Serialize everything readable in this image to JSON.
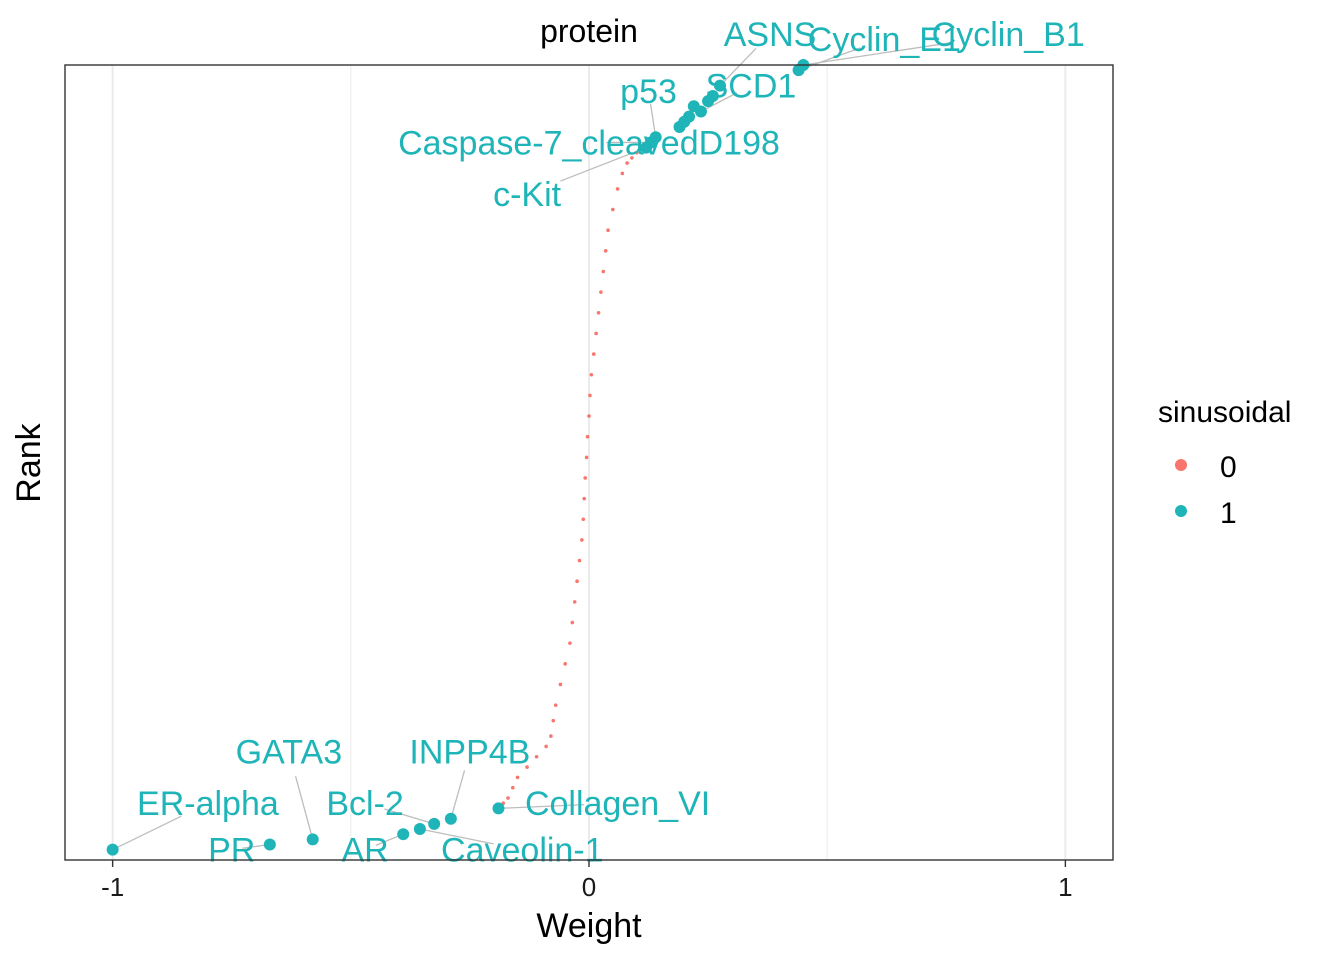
{
  "chart_data": {
    "type": "scatter",
    "title": "protein",
    "xlabel": "Weight",
    "ylabel": "Rank",
    "xlim": [
      -1.1,
      1.1
    ],
    "ylim": [
      -2,
      152
    ],
    "x_ticks": [
      {
        "value": -1,
        "label": "-1"
      },
      {
        "value": 0,
        "label": "0"
      },
      {
        "value": 1,
        "label": "1"
      }
    ],
    "grid": true,
    "legend": {
      "title": "sinusoidal",
      "position": "right",
      "entries": [
        {
          "label": "0",
          "color": "#f8766d"
        },
        {
          "label": "1",
          "color": "#1fb5b8"
        }
      ]
    },
    "colors": {
      "group0": "#f8766d",
      "group1": "#1fb5b8"
    },
    "labeled_points": [
      {
        "name": "ER-alpha",
        "x": -1.0,
        "y": 0,
        "label_x": -0.8,
        "label_y": 9
      },
      {
        "name": "PR",
        "x": -0.67,
        "y": 1,
        "label_x": -0.75,
        "label_y": 0
      },
      {
        "name": "GATA3",
        "x": -0.58,
        "y": 2,
        "label_x": -0.63,
        "label_y": 19
      },
      {
        "name": "AR",
        "x": -0.39,
        "y": 3,
        "label_x": -0.47,
        "label_y": 0
      },
      {
        "name": "Caveolin-1",
        "x": -0.355,
        "y": 4,
        "label_x": -0.14,
        "label_y": 0
      },
      {
        "name": "Bcl-2",
        "x": -0.325,
        "y": 5,
        "label_x": -0.47,
        "label_y": 9
      },
      {
        "name": "INPP4B",
        "x": -0.29,
        "y": 6,
        "label_x": -0.25,
        "label_y": 19
      },
      {
        "name": "Collagen_VI",
        "x": -0.19,
        "y": 8,
        "label_x": 0.06,
        "label_y": 9
      },
      {
        "name": "c-Kit",
        "x": 0.12,
        "y": 136,
        "label_x": -0.13,
        "label_y": 127
      },
      {
        "name": "Caspase-7_cleavedD198",
        "x": 0.13,
        "y": 137,
        "label_x": 0.0,
        "label_y": 137
      },
      {
        "name": "p53",
        "x": 0.14,
        "y": 138,
        "label_x": 0.125,
        "label_y": 147
      },
      {
        "name": "SCD1",
        "x": 0.235,
        "y": 143,
        "label_x": 0.34,
        "label_y": 148
      },
      {
        "name": "ASNS",
        "x": 0.275,
        "y": 148,
        "label_x": 0.38,
        "label_y": 158
      },
      {
        "name": "Cyclin_E1",
        "x": 0.44,
        "y": 151,
        "label_x": 0.62,
        "label_y": 157
      },
      {
        "name": "Cyclin_B1",
        "x": 0.45,
        "y": 152,
        "label_x": 0.88,
        "label_y": 158
      }
    ],
    "blue_points_extra": [
      {
        "x": 0.19,
        "y": 140
      },
      {
        "x": 0.2,
        "y": 141
      },
      {
        "x": 0.21,
        "y": 142
      },
      {
        "x": 0.22,
        "y": 144
      },
      {
        "x": 0.25,
        "y": 145
      },
      {
        "x": 0.26,
        "y": 146
      }
    ],
    "red_curve": [
      [
        -0.18,
        9
      ],
      [
        -0.17,
        10
      ],
      [
        -0.16,
        12
      ],
      [
        -0.15,
        14
      ],
      [
        -0.13,
        16
      ],
      [
        -0.11,
        18
      ],
      [
        -0.09,
        20
      ],
      [
        -0.08,
        22
      ],
      [
        -0.075,
        25
      ],
      [
        -0.07,
        28
      ],
      [
        -0.06,
        32
      ],
      [
        -0.05,
        36
      ],
      [
        -0.04,
        40
      ],
      [
        -0.035,
        44
      ],
      [
        -0.03,
        48
      ],
      [
        -0.025,
        52
      ],
      [
        -0.02,
        56
      ],
      [
        -0.015,
        60
      ],
      [
        -0.012,
        64
      ],
      [
        -0.01,
        68
      ],
      [
        -0.008,
        72
      ],
      [
        -0.005,
        76
      ],
      [
        -0.003,
        80
      ],
      [
        0.0,
        84
      ],
      [
        0.002,
        88
      ],
      [
        0.005,
        92
      ],
      [
        0.01,
        96
      ],
      [
        0.015,
        100
      ],
      [
        0.02,
        104
      ],
      [
        0.025,
        108
      ],
      [
        0.03,
        112
      ],
      [
        0.035,
        116
      ],
      [
        0.04,
        120
      ],
      [
        0.05,
        124
      ],
      [
        0.06,
        128
      ],
      [
        0.07,
        131
      ],
      [
        0.08,
        133
      ],
      [
        0.09,
        134
      ],
      [
        0.1,
        135
      ]
    ]
  }
}
